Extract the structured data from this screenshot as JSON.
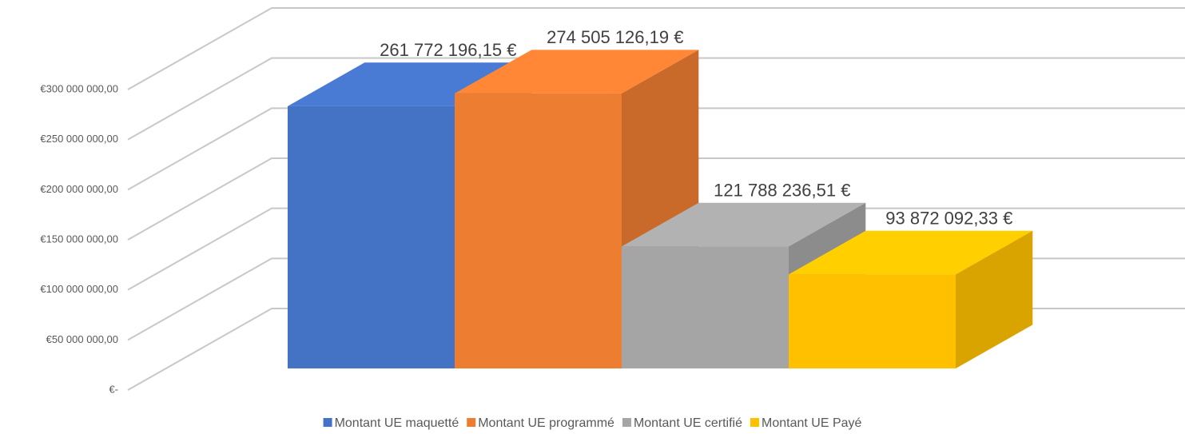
{
  "chart_data": {
    "type": "bar",
    "series": [
      {
        "name": "Montant UE maquetté",
        "color": "#4472c4",
        "values": [
          261772196.15
        ],
        "value_labels": [
          "261 772 196,15 €"
        ]
      },
      {
        "name": "Montant UE programmé",
        "color": "#ed7d31",
        "values": [
          274505126.19
        ],
        "value_labels": [
          "274 505 126,19 €"
        ]
      },
      {
        "name": "Montant UE certifié",
        "color": "#a5a5a5",
        "values": [
          121788236.51
        ],
        "value_labels": [
          "121 788 236,51 €"
        ]
      },
      {
        "name": "Montant UE Payé",
        "color": "#ffc000",
        "values": [
          93872092.33
        ],
        "value_labels": [
          "93 872 092,33 €"
        ]
      }
    ],
    "ylim": [
      0,
      300000000
    ],
    "yticks": [
      {
        "value": 0,
        "label": "€-"
      },
      {
        "value": 50000000,
        "label": "€50 000 000,00"
      },
      {
        "value": 100000000,
        "label": "€100 000 000,00"
      },
      {
        "value": 150000000,
        "label": "€150 000 000,00"
      },
      {
        "value": 200000000,
        "label": "€200 000 000,00"
      },
      {
        "value": 250000000,
        "label": "€250 000 000,00"
      },
      {
        "value": 300000000,
        "label": "€300 000 000,00"
      }
    ],
    "grid": true,
    "legend": "bottom"
  }
}
